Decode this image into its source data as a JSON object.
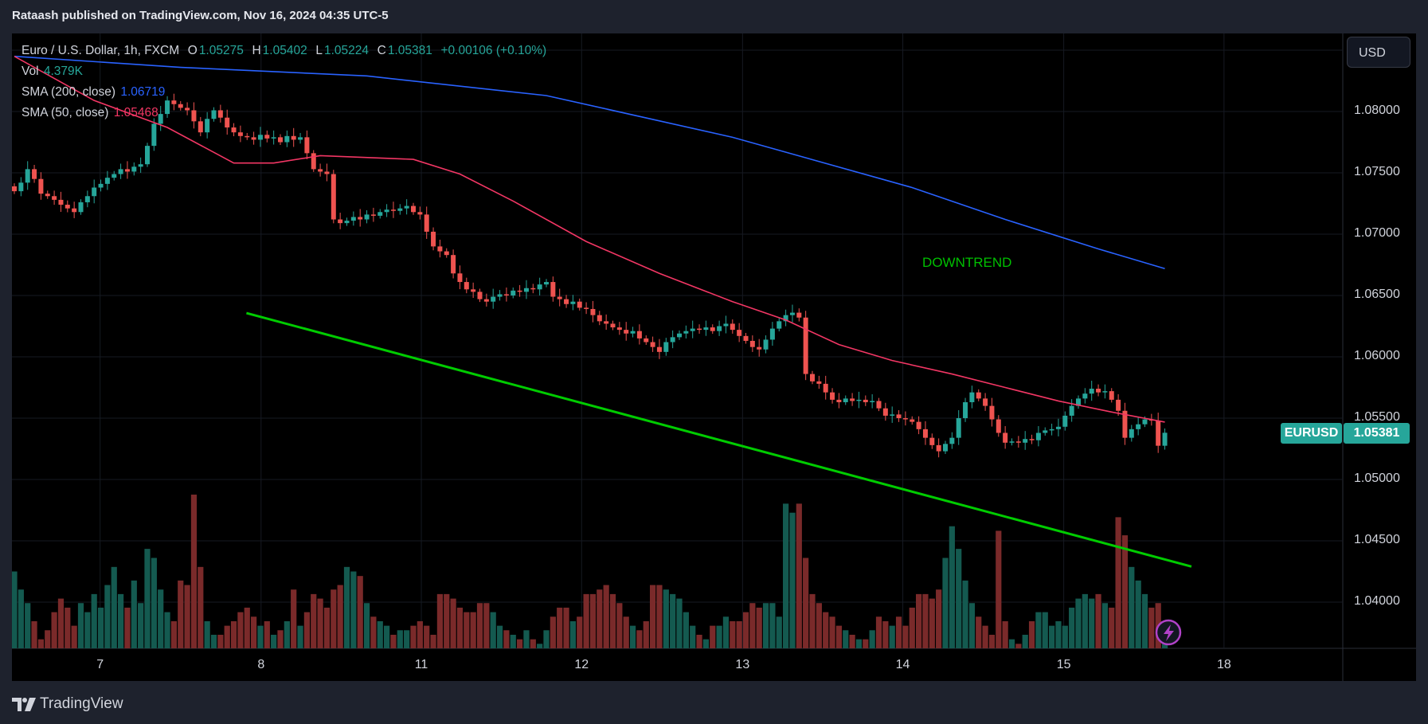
{
  "header": {
    "published_text": "Rataash published on TradingView.com, Nov 16, 2024 04:35 UTC-5"
  },
  "legend": {
    "symbol": "Euro / U.S. Dollar, 1h, FXCM",
    "o_label": "O",
    "o": "1.05275",
    "h_label": "H",
    "h": "1.05402",
    "l_label": "L",
    "l": "1.05224",
    "c_label": "C",
    "c": "1.05381",
    "change": "+0.00106 (+0.10%)",
    "vol_label": "Vol",
    "vol": "4.379K",
    "sma200_label": "SMA (200, close)",
    "sma200": "1.06719",
    "sma50_label": "SMA (50, close)",
    "sma50": "1.05468"
  },
  "currency_button": "USD",
  "price_tag": {
    "symbol": "EURUSD",
    "price": "1.05381"
  },
  "annotation": {
    "text": "DOWNTREND",
    "color": "#00c000"
  },
  "footer": {
    "brand": "TradingView"
  },
  "icons": {
    "event": "lightning-icon",
    "logo": "tradingview-logo"
  },
  "colors": {
    "up": "#26a69a",
    "down": "#ef5350",
    "vol_up": "#145a50",
    "vol_down": "#7a2a2a",
    "sma200": "#2962ff",
    "sma50": "#f23664",
    "trendline": "#00cc00",
    "background": "#000000"
  },
  "chart_data": {
    "type": "candlestick",
    "interval": "1h",
    "yticks": [
      "1.08000",
      "1.07500",
      "1.07000",
      "1.06500",
      "1.06000",
      "1.05500",
      "1.05000",
      "1.04500",
      "1.04000"
    ],
    "ylim": [
      1.0365,
      1.0865
    ],
    "xticks": [
      {
        "label": "7",
        "at": 12.9
      },
      {
        "label": "8",
        "at": 37.1
      },
      {
        "label": "11",
        "at": 61.2
      },
      {
        "label": "12",
        "at": 85.3
      },
      {
        "label": "13",
        "at": 109.5
      },
      {
        "label": "14",
        "at": 133.6
      },
      {
        "label": "15",
        "at": 157.8
      },
      {
        "label": "18",
        "at": 181.9
      }
    ],
    "grid": true,
    "close": [
      1.0735,
      1.0742,
      1.0753,
      1.0745,
      1.0733,
      1.0731,
      1.0728,
      1.0724,
      1.0721,
      1.0718,
      1.0726,
      1.0731,
      1.0738,
      1.0741,
      1.0746,
      1.0749,
      1.0753,
      1.0751,
      1.0755,
      1.0757,
      1.0772,
      1.079,
      1.0798,
      1.0809,
      1.0806,
      1.0803,
      1.0801,
      1.0792,
      1.0783,
      1.0794,
      1.0801,
      1.0795,
      1.0787,
      1.0783,
      1.078,
      1.0779,
      1.0777,
      1.0781,
      1.0778,
      1.0779,
      1.0775,
      1.078,
      1.0777,
      1.0779,
      1.0766,
      1.0753,
      1.0751,
      1.0749,
      1.0712,
      1.0709,
      1.0711,
      1.0714,
      1.0712,
      1.0716,
      1.0715,
      1.0718,
      1.072,
      1.0719,
      1.0721,
      1.0723,
      1.0718,
      1.0716,
      1.0702,
      1.069,
      1.0686,
      1.0683,
      1.0668,
      1.0661,
      1.0655,
      1.0653,
      1.0647,
      1.0645,
      1.0649,
      1.0651,
      1.065,
      1.0654,
      1.0653,
      1.0656,
      1.0655,
      1.0659,
      1.0661,
      1.0649,
      1.0647,
      1.0643,
      1.0645,
      1.064,
      1.0639,
      1.0634,
      1.0629,
      1.0627,
      1.0624,
      1.0622,
      1.0619,
      1.0621,
      1.0615,
      1.0612,
      1.0608,
      1.0604,
      1.0612,
      1.0616,
      1.0619,
      1.0621,
      1.0623,
      1.0622,
      1.0624,
      1.0621,
      1.0625,
      1.0627,
      1.0622,
      1.0617,
      1.0613,
      1.0608,
      1.0606,
      1.0614,
      1.0623,
      1.0629,
      1.0634,
      1.0636,
      1.0632,
      1.0586,
      1.058,
      1.0578,
      1.0571,
      1.0565,
      1.0563,
      1.0566,
      1.0564,
      1.0565,
      1.0563,
      1.0564,
      1.0558,
      1.0552,
      1.0553,
      1.055,
      1.0549,
      1.0547,
      1.0541,
      1.0534,
      1.0528,
      1.0523,
      1.0529,
      1.0534,
      1.055,
      1.0563,
      1.0571,
      1.0566,
      1.056,
      1.0549,
      1.0538,
      1.053,
      1.0531,
      1.053,
      1.0533,
      1.0532,
      1.0538,
      1.054,
      1.0541,
      1.0543,
      1.0552,
      1.056,
      1.0566,
      1.057,
      1.0574,
      1.0571,
      1.0572,
      1.0565,
      1.0556,
      1.0534,
      1.0541,
      1.0545,
      1.0549,
      1.0548,
      1.05275,
      1.05381
    ],
    "volume": [
      17,
      13,
      10,
      6,
      2,
      4,
      8,
      11,
      9,
      5,
      10,
      8,
      12,
      9,
      14,
      18,
      12,
      9,
      15,
      10,
      22,
      20,
      13,
      8,
      6,
      15,
      14,
      34,
      18,
      6,
      3,
      3,
      5,
      6,
      8,
      9,
      7,
      5,
      6,
      3,
      4,
      6,
      13,
      5,
      8,
      12,
      11,
      9,
      13,
      14,
      18,
      17,
      16,
      10,
      7,
      6,
      5,
      3,
      4,
      4,
      5,
      6,
      5,
      3,
      12,
      12,
      11,
      9,
      8,
      8,
      10,
      10,
      8,
      5,
      4,
      3,
      2,
      4,
      2,
      1,
      4,
      7,
      9,
      9,
      6,
      7,
      12,
      12,
      13,
      14,
      12,
      10,
      7,
      5,
      4,
      6,
      14,
      14,
      13,
      12,
      11,
      8,
      5,
      3,
      2,
      5,
      5,
      7,
      6,
      6,
      8,
      10,
      9,
      10,
      10,
      7,
      32,
      30,
      32,
      20,
      12,
      10,
      8,
      7,
      5,
      4,
      3,
      2,
      2,
      4,
      7,
      6,
      5,
      7,
      5,
      9,
      12,
      12,
      11,
      13,
      20,
      27,
      22,
      15,
      10,
      7,
      5,
      3,
      26,
      6,
      2,
      1,
      3,
      6,
      8,
      8,
      5,
      6,
      5,
      9,
      11,
      12,
      11,
      12,
      10,
      9,
      29,
      25,
      18,
      15,
      12,
      9,
      10,
      1
    ],
    "series": [
      {
        "name": "SMA (200, close)",
        "points": [
          [
            0,
            1.0845
          ],
          [
            25,
            1.0836
          ],
          [
            53,
            1.0829
          ],
          [
            80,
            1.0813
          ],
          [
            108,
            1.0779
          ],
          [
            135,
            1.0738
          ],
          [
            149,
            1.0712
          ],
          [
            163,
            1.0688
          ],
          [
            173,
            1.06719
          ]
        ]
      },
      {
        "name": "SMA (50, close)",
        "points": [
          [
            0,
            1.0845
          ],
          [
            12,
            1.0809
          ],
          [
            23,
            1.0787
          ],
          [
            33,
            1.0758
          ],
          [
            39,
            1.0758
          ],
          [
            46,
            1.0764
          ],
          [
            60,
            1.0761
          ],
          [
            67,
            1.0749
          ],
          [
            75,
            1.0727
          ],
          [
            86,
            1.0694
          ],
          [
            97,
            1.0668
          ],
          [
            108,
            1.0645
          ],
          [
            116,
            1.063
          ],
          [
            124,
            1.061
          ],
          [
            132,
            1.0597
          ],
          [
            141,
            1.0586
          ],
          [
            149,
            1.0575
          ],
          [
            157,
            1.0564
          ],
          [
            165,
            1.0555
          ],
          [
            173,
            1.05468
          ]
        ]
      }
    ],
    "trendline": [
      [
        34.9,
        1.06357
      ],
      [
        177,
        1.0429
      ]
    ],
    "annotation_at": [
      143,
      1.0676
    ]
  }
}
